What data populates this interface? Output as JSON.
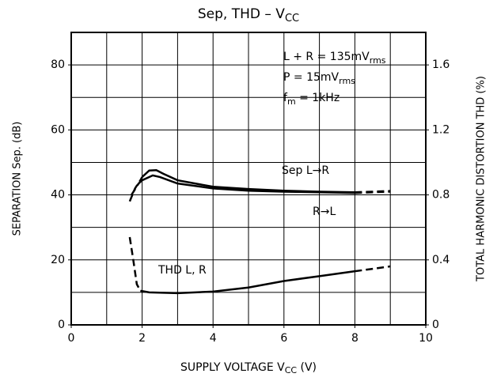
{
  "chart_data": {
    "type": "line",
    "title": {
      "text": "Sep, THD  –  V",
      "sub": "CC"
    },
    "xlabel": {
      "text": "SUPPLY VOLTAGE   V",
      "sub": "CC",
      "after": "   (V)"
    },
    "ylabel": "SEPARATION   Sep.   (dB)",
    "y2label": "TOTAL HARMONIC DISTORTION   THD   (%)",
    "xlim": [
      0,
      10
    ],
    "xticks": [
      0,
      2,
      4,
      6,
      8,
      10
    ],
    "xgrid": [
      1,
      2,
      3,
      4,
      5,
      6,
      7,
      8,
      9
    ],
    "ylim": [
      0,
      90
    ],
    "yticks": [
      0,
      20,
      40,
      60,
      80
    ],
    "ygrid": [
      10,
      20,
      30,
      40,
      50,
      60,
      70,
      80
    ],
    "y2lim": [
      0,
      1.8
    ],
    "y2ticks": [
      0,
      0.4,
      0.8,
      1.2,
      1.6
    ],
    "grid": true,
    "conditions": [
      [
        {
          "text": "L + R = 135mV"
        },
        {
          "text": "rms",
          "sub": true
        }
      ],
      [
        {
          "text": "P = 15mV"
        },
        {
          "text": "rms",
          "sub": true
        }
      ],
      [
        {
          "text": "f"
        },
        {
          "text": "m",
          "sub": true
        },
        {
          "text": " = 1kHz"
        }
      ]
    ],
    "annotations": [
      "Sep  L→R",
      "R→L",
      "THD  L,  R"
    ],
    "series": [
      {
        "color": "#000000",
        "x": [
          1.65,
          1.8,
          1.95,
          2.0,
          2.2,
          2.4,
          2.6,
          3,
          4,
          5,
          6,
          7,
          8,
          8.5,
          9
        ],
        "values": [
          38,
          42,
          44.5,
          45.5,
          47.5,
          47.6,
          46.5,
          44.5,
          42.5,
          41.8,
          41.3,
          41,
          40.8,
          41,
          41.2
        ],
        "dash": [
          true,
          true,
          true,
          true,
          false,
          false,
          false,
          false,
          false,
          false,
          false,
          false,
          false,
          true,
          true
        ]
      },
      {
        "color": "#000000",
        "x": [
          1.7,
          1.9,
          2.0,
          2.3,
          2.5,
          3,
          4,
          5,
          6,
          7,
          8,
          8.5,
          9
        ],
        "values": [
          40,
          43.5,
          44.5,
          46,
          45.5,
          43.5,
          42,
          41.3,
          41,
          40.8,
          40.6,
          40.8,
          41
        ],
        "dash": [
          true,
          true,
          true,
          false,
          false,
          false,
          false,
          false,
          false,
          false,
          false,
          true,
          true
        ]
      },
      {
        "color": "#000000",
        "axis": "y2",
        "x": [
          1.65,
          1.75,
          1.85,
          1.95,
          2.2,
          3,
          4,
          5,
          6,
          7,
          8,
          8.5,
          9
        ],
        "values": [
          0.54,
          0.4,
          0.25,
          0.21,
          0.2,
          0.195,
          0.205,
          0.23,
          0.27,
          0.3,
          0.33,
          0.345,
          0.36
        ],
        "dash": [
          true,
          true,
          true,
          true,
          false,
          false,
          false,
          false,
          false,
          false,
          false,
          true,
          true
        ]
      }
    ]
  }
}
